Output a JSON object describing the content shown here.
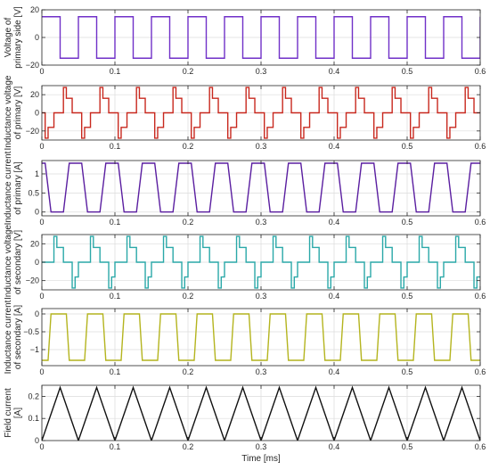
{
  "chart_data": [
    {
      "type": "line",
      "ylabel": [
        "Voltage of",
        "primary side [V]"
      ],
      "xlim": [
        0,
        0.6
      ],
      "ylim": [
        -20,
        20
      ],
      "xticks": [
        0,
        0.1,
        0.2,
        0.3,
        0.4,
        0.5,
        0.6
      ],
      "xticklabels": [
        "0",
        "0.1",
        "0.2",
        "0.3",
        "0.4",
        "0.5",
        "0.6"
      ],
      "yticks": [
        -20,
        0,
        20
      ],
      "yticklabels": [
        "−20",
        "0",
        "20"
      ],
      "grid": true,
      "series": [
        {
          "color": "#7030c8",
          "period": 0.05,
          "points": [
            [
              0,
              15
            ],
            [
              0.025,
              15
            ],
            [
              0.025,
              -15
            ],
            [
              0.05,
              -15
            ],
            [
              0.05,
              15
            ]
          ]
        }
      ]
    },
    {
      "type": "line",
      "ylabel": [
        "Inductance voltage",
        "of primary [V]"
      ],
      "xlim": [
        0,
        0.6
      ],
      "ylim": [
        -30,
        30
      ],
      "xticks": [
        0,
        0.1,
        0.2,
        0.3,
        0.4,
        0.5,
        0.6
      ],
      "xticklabels": [
        "0",
        "0.1",
        "0.2",
        "0.3",
        "0.4",
        "0.5",
        "0.6"
      ],
      "yticks": [
        -20,
        0,
        20
      ],
      "yticklabels": [
        "−20",
        "0",
        "20"
      ],
      "grid": true,
      "series": [
        {
          "color": "#c8281e",
          "period": 0.05,
          "points": [
            [
              0,
              0
            ],
            [
              0.0045,
              0
            ],
            [
              0.0045,
              -28
            ],
            [
              0.0085,
              -28
            ],
            [
              0.0085,
              -16
            ],
            [
              0.0165,
              -16
            ],
            [
              0.0165,
              0
            ],
            [
              0.0295,
              0
            ],
            [
              0.0295,
              28
            ],
            [
              0.0335,
              28
            ],
            [
              0.0335,
              16
            ],
            [
              0.0415,
              16
            ],
            [
              0.0415,
              0
            ],
            [
              0.05,
              0
            ]
          ]
        }
      ]
    },
    {
      "type": "line",
      "ylabel": [
        "Inductance current",
        "of primary [A]"
      ],
      "xlim": [
        0,
        0.6
      ],
      "ylim": [
        -0.1,
        1.35
      ],
      "xticks": [
        0,
        0.1,
        0.2,
        0.3,
        0.4,
        0.5,
        0.6
      ],
      "xticklabels": [
        "0",
        "0.1",
        "0.2",
        "0.3",
        "0.4",
        "0.5",
        "0.6"
      ],
      "yticks": [
        0,
        0.5,
        1
      ],
      "yticklabels": [
        "0",
        "0.5",
        "1"
      ],
      "grid": true,
      "series": [
        {
          "color": "#5a1ea0",
          "period": 0.05,
          "points": [
            [
              0,
              1.28
            ],
            [
              0.0045,
              1.28
            ],
            [
              0.0125,
              0
            ],
            [
              0.0295,
              0
            ],
            [
              0.0375,
              1.28
            ],
            [
              0.05,
              1.28
            ]
          ]
        }
      ]
    },
    {
      "type": "line",
      "ylabel": [
        "Inductance voltage",
        "of secondary [V]"
      ],
      "xlim": [
        0,
        0.6
      ],
      "ylim": [
        -30,
        30
      ],
      "xticks": [
        0,
        0.1,
        0.2,
        0.3,
        0.4,
        0.5,
        0.6
      ],
      "xticklabels": [
        "0",
        "0.1",
        "0.2",
        "0.3",
        "0.4",
        "0.5",
        "0.6"
      ],
      "yticks": [
        -20,
        0,
        20
      ],
      "yticklabels": [
        "−20",
        "0",
        "20"
      ],
      "grid": true,
      "series": [
        {
          "color": "#2aa8a8",
          "period": 0.05,
          "points": [
            [
              0,
              0
            ],
            [
              0.0165,
              0
            ],
            [
              0.0165,
              28
            ],
            [
              0.0205,
              28
            ],
            [
              0.0205,
              16
            ],
            [
              0.0295,
              16
            ],
            [
              0.0295,
              0
            ],
            [
              0.0415,
              0
            ],
            [
              0.0415,
              -28
            ],
            [
              0.0455,
              -28
            ],
            [
              0.0455,
              -16
            ],
            [
              0.05,
              -16
            ]
          ]
        }
      ]
    },
    {
      "type": "line",
      "ylabel": [
        "Inductance current",
        "of secondary [A]"
      ],
      "xlim": [
        0,
        0.6
      ],
      "ylim": [
        -1.45,
        0.15
      ],
      "xticks": [
        0,
        0.1,
        0.2,
        0.3,
        0.4,
        0.5,
        0.6
      ],
      "xticklabels": [
        "0",
        "0.1",
        "0.2",
        "0.3",
        "0.4",
        "0.5",
        "0.6"
      ],
      "yticks": [
        -1,
        -0.5,
        0
      ],
      "yticklabels": [
        "−1",
        "−0.5",
        "0"
      ],
      "grid": true,
      "series": [
        {
          "color": "#b4b41e",
          "period": 0.05,
          "points": [
            [
              0,
              -1.3
            ],
            [
              0.0085,
              -1.3
            ],
            [
              0.0125,
              0
            ],
            [
              0.0335,
              0
            ],
            [
              0.0375,
              -1.3
            ],
            [
              0.05,
              -1.3
            ]
          ]
        }
      ]
    },
    {
      "type": "line",
      "ylabel": [
        "Field current",
        "[A]"
      ],
      "xlim": [
        0,
        0.6
      ],
      "ylim": [
        0,
        0.25
      ],
      "xticks": [
        0,
        0.1,
        0.2,
        0.3,
        0.4,
        0.5,
        0.6
      ],
      "xticklabels": [
        "0",
        "0.1",
        "0.2",
        "0.3",
        "0.4",
        "0.5",
        "0.6"
      ],
      "yticks": [
        0,
        0.1,
        0.2
      ],
      "yticklabels": [
        "0",
        "0.1",
        "0.2"
      ],
      "xlabel": "Time [ms]",
      "grid": true,
      "series": [
        {
          "color": "#111111",
          "period": 0.05,
          "points": [
            [
              0,
              0
            ],
            [
              0.025,
              0.24
            ],
            [
              0.05,
              0
            ]
          ]
        }
      ]
    }
  ]
}
